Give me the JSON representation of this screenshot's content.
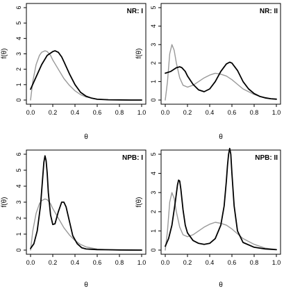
{
  "chart_data": [
    {
      "type": "line",
      "title": "NR: I",
      "xlabel": "θ",
      "ylabel": "f(θ)",
      "xlim": [
        0,
        1
      ],
      "ylim": [
        0,
        6
      ],
      "x_ticks": [
        "0.0",
        "0.2",
        "0.4",
        "0.6",
        "0.8",
        "1.0"
      ],
      "y_ticks": [
        "0",
        "1",
        "2",
        "3",
        "4",
        "5",
        "6"
      ],
      "grid": false,
      "legend": "none",
      "series": [
        {
          "color": "#999999",
          "width": 1.4,
          "x": [
            0,
            0.02,
            0.05,
            0.08,
            0.1,
            0.13,
            0.15,
            0.18,
            0.2,
            0.25,
            0.3,
            0.35,
            0.4,
            0.45,
            0.5,
            0.6,
            0.7,
            0.8,
            0.9,
            1.0
          ],
          "y": [
            0.0,
            1.2,
            2.3,
            2.9,
            3.1,
            3.2,
            3.15,
            2.9,
            2.6,
            2.0,
            1.4,
            0.95,
            0.6,
            0.35,
            0.2,
            0.06,
            0.02,
            0.01,
            0.0,
            0.0
          ]
        },
        {
          "color": "#000000",
          "width": 1.8,
          "x": [
            0,
            0.05,
            0.1,
            0.15,
            0.2,
            0.22,
            0.25,
            0.28,
            0.3,
            0.35,
            0.4,
            0.45,
            0.5,
            0.55,
            0.6,
            0.7,
            0.8,
            0.9,
            1.0
          ],
          "y": [
            0.7,
            1.5,
            2.3,
            2.9,
            3.15,
            3.2,
            3.1,
            2.8,
            2.5,
            1.7,
            1.0,
            0.5,
            0.25,
            0.12,
            0.05,
            0.02,
            0.01,
            0.0,
            0.0
          ]
        }
      ]
    },
    {
      "type": "line",
      "title": "NR: II",
      "xlabel": "θ",
      "ylabel": "f(θ)",
      "xlim": [
        0,
        1
      ],
      "ylim": [
        0,
        5
      ],
      "x_ticks": [
        "0.0",
        "0.2",
        "0.4",
        "0.6",
        "0.8",
        "1.0"
      ],
      "y_ticks": [
        "0",
        "1",
        "2",
        "3",
        "4",
        "5"
      ],
      "grid": false,
      "legend": "none",
      "series": [
        {
          "color": "#999999",
          "width": 1.4,
          "x": [
            0,
            0.02,
            0.04,
            0.06,
            0.08,
            0.1,
            0.13,
            0.16,
            0.2,
            0.25,
            0.3,
            0.35,
            0.4,
            0.45,
            0.5,
            0.55,
            0.6,
            0.65,
            0.7,
            0.8,
            0.9,
            1.0
          ],
          "y": [
            0.0,
            1.0,
            2.5,
            3.0,
            2.7,
            2.0,
            1.2,
            0.8,
            0.7,
            0.8,
            1.0,
            1.2,
            1.35,
            1.45,
            1.4,
            1.3,
            1.1,
            0.85,
            0.6,
            0.3,
            0.1,
            0.03
          ]
        },
        {
          "color": "#000000",
          "width": 1.8,
          "x": [
            0,
            0.05,
            0.1,
            0.13,
            0.15,
            0.18,
            0.2,
            0.25,
            0.3,
            0.35,
            0.4,
            0.45,
            0.5,
            0.55,
            0.58,
            0.6,
            0.65,
            0.7,
            0.75,
            0.8,
            0.85,
            0.9,
            0.95,
            1.0
          ],
          "y": [
            1.45,
            1.55,
            1.75,
            1.8,
            1.75,
            1.55,
            1.3,
            0.85,
            0.55,
            0.45,
            0.6,
            1.0,
            1.55,
            1.95,
            2.05,
            2.0,
            1.6,
            1.0,
            0.6,
            0.35,
            0.2,
            0.12,
            0.07,
            0.05
          ]
        }
      ]
    },
    {
      "type": "line",
      "title": "NPB: I",
      "xlabel": "θ",
      "ylabel": "f(θ)",
      "xlim": [
        0,
        1
      ],
      "ylim": [
        0,
        6
      ],
      "x_ticks": [
        "0.0",
        "0.2",
        "0.4",
        "0.6",
        "0.8",
        "1.0"
      ],
      "y_ticks": [
        "0",
        "1",
        "2",
        "3",
        "4",
        "5",
        "6"
      ],
      "grid": false,
      "legend": "none",
      "series": [
        {
          "color": "#999999",
          "width": 1.4,
          "x": [
            0,
            0.02,
            0.05,
            0.08,
            0.1,
            0.13,
            0.15,
            0.18,
            0.2,
            0.25,
            0.3,
            0.35,
            0.4,
            0.45,
            0.5,
            0.6,
            0.7,
            0.8,
            0.9,
            1.0
          ],
          "y": [
            0.0,
            1.2,
            2.3,
            2.9,
            3.1,
            3.2,
            3.15,
            2.9,
            2.6,
            2.0,
            1.4,
            0.95,
            0.6,
            0.35,
            0.2,
            0.06,
            0.02,
            0.01,
            0.0,
            0.0
          ]
        },
        {
          "color": "#000000",
          "width": 1.8,
          "x": [
            0,
            0.03,
            0.06,
            0.09,
            0.11,
            0.12,
            0.13,
            0.14,
            0.15,
            0.16,
            0.18,
            0.2,
            0.22,
            0.25,
            0.28,
            0.3,
            0.32,
            0.35,
            0.38,
            0.42,
            0.46,
            0.5,
            0.6,
            0.7,
            0.8,
            1.0
          ],
          "y": [
            0.1,
            0.4,
            1.2,
            2.8,
            4.6,
            5.5,
            5.9,
            5.6,
            4.8,
            3.6,
            2.2,
            1.6,
            1.65,
            2.4,
            3.0,
            3.0,
            2.7,
            1.8,
            0.9,
            0.4,
            0.15,
            0.07,
            0.03,
            0.02,
            0.01,
            0.0
          ]
        }
      ]
    },
    {
      "type": "line",
      "title": "NPB: II",
      "xlabel": "θ",
      "ylabel": "f(θ)",
      "xlim": [
        0,
        1
      ],
      "ylim": [
        0,
        5
      ],
      "x_ticks": [
        "0.0",
        "0.2",
        "0.4",
        "0.6",
        "0.8",
        "1.0"
      ],
      "y_ticks": [
        "0",
        "1",
        "2",
        "3",
        "4",
        "5"
      ],
      "grid": false,
      "legend": "none",
      "series": [
        {
          "color": "#999999",
          "width": 1.4,
          "x": [
            0,
            0.02,
            0.04,
            0.06,
            0.08,
            0.1,
            0.13,
            0.16,
            0.2,
            0.25,
            0.3,
            0.35,
            0.4,
            0.45,
            0.5,
            0.55,
            0.6,
            0.65,
            0.7,
            0.8,
            0.9,
            1.0
          ],
          "y": [
            0.0,
            1.0,
            2.5,
            3.0,
            2.7,
            2.0,
            1.2,
            0.8,
            0.7,
            0.8,
            1.0,
            1.2,
            1.35,
            1.45,
            1.4,
            1.3,
            1.1,
            0.85,
            0.6,
            0.3,
            0.1,
            0.03
          ]
        },
        {
          "color": "#000000",
          "width": 1.8,
          "x": [
            0,
            0.03,
            0.06,
            0.09,
            0.11,
            0.12,
            0.13,
            0.14,
            0.16,
            0.18,
            0.2,
            0.25,
            0.3,
            0.35,
            0.4,
            0.45,
            0.5,
            0.53,
            0.55,
            0.56,
            0.57,
            0.58,
            0.59,
            0.6,
            0.62,
            0.65,
            0.7,
            0.8,
            0.9,
            1.0
          ],
          "y": [
            0.2,
            0.6,
            1.3,
            2.5,
            3.4,
            3.65,
            3.6,
            3.2,
            2.1,
            1.3,
            0.9,
            0.5,
            0.35,
            0.3,
            0.35,
            0.6,
            1.3,
            2.3,
            3.6,
            4.4,
            5.0,
            5.3,
            5.0,
            4.0,
            2.3,
            1.0,
            0.4,
            0.15,
            0.06,
            0.02
          ]
        }
      ]
    }
  ]
}
